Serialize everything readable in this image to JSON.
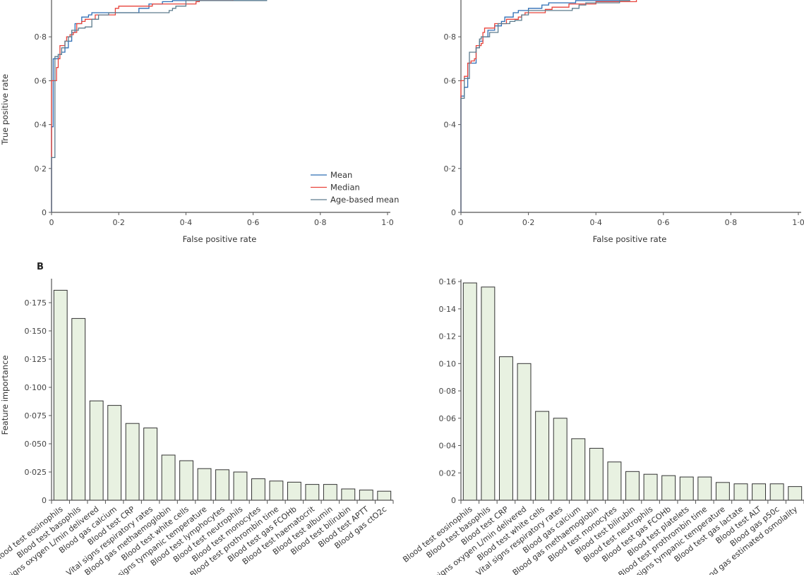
{
  "colors": {
    "mean": "#2e6db4",
    "median": "#e8433b",
    "age_based_mean": "#5d7c8e",
    "bar_fill": "#e8f1e1",
    "bar_stroke": "#333333",
    "axis": "#555555"
  },
  "panel_label_b": "B",
  "chart_data": [
    {
      "type": "line",
      "xlabel": "False positive rate",
      "ylabel": "True positive rate",
      "xlim": [
        0,
        1
      ],
      "ylim": [
        0,
        1
      ],
      "xticks": [
        0,
        0.2,
        0.4,
        0.6,
        0.8,
        1.0
      ],
      "xtick_labels": [
        "0",
        "0·2",
        "0·4",
        "0·6",
        "0·8",
        "1·0"
      ],
      "yticks": [
        0,
        0.2,
        0.4,
        0.6,
        0.8
      ],
      "ytick_labels": [
        "0",
        "0·2",
        "0·4",
        "0·6",
        "0·8"
      ],
      "legend": "bottom-right",
      "grid": false,
      "series": [
        {
          "name": "Mean",
          "color_key": "mean",
          "points": [
            [
              0,
              0
            ],
            [
              0,
              0.25
            ],
            [
              0,
              0.39
            ],
            [
              0.005,
              0.39
            ],
            [
              0.005,
              0.7
            ],
            [
              0.02,
              0.7
            ],
            [
              0.02,
              0.72
            ],
            [
              0.03,
              0.72
            ],
            [
              0.03,
              0.73
            ],
            [
              0.04,
              0.73
            ],
            [
              0.04,
              0.75
            ],
            [
              0.05,
              0.75
            ],
            [
              0.05,
              0.78
            ],
            [
              0.06,
              0.78
            ],
            [
              0.06,
              0.82
            ],
            [
              0.07,
              0.82
            ],
            [
              0.07,
              0.86
            ],
            [
              0.09,
              0.86
            ],
            [
              0.09,
              0.89
            ],
            [
              0.11,
              0.89
            ],
            [
              0.11,
              0.9
            ],
            [
              0.12,
              0.9
            ],
            [
              0.12,
              0.91
            ],
            [
              0.26,
              0.91
            ],
            [
              0.26,
              0.93
            ],
            [
              0.29,
              0.93
            ],
            [
              0.29,
              0.95
            ],
            [
              0.33,
              0.95
            ],
            [
              0.33,
              0.96
            ],
            [
              0.36,
              0.96
            ],
            [
              0.36,
              0.965
            ],
            [
              0.64,
              0.965
            ],
            [
              0.64,
              1.0
            ],
            [
              1,
              1
            ]
          ]
        },
        {
          "name": "Median",
          "color_key": "median",
          "points": [
            [
              0,
              0
            ],
            [
              0,
              0.6
            ],
            [
              0.015,
              0.6
            ],
            [
              0.015,
              0.66
            ],
            [
              0.02,
              0.66
            ],
            [
              0.02,
              0.7
            ],
            [
              0.025,
              0.7
            ],
            [
              0.025,
              0.76
            ],
            [
              0.04,
              0.76
            ],
            [
              0.04,
              0.78
            ],
            [
              0.045,
              0.78
            ],
            [
              0.045,
              0.8
            ],
            [
              0.055,
              0.8
            ],
            [
              0.055,
              0.81
            ],
            [
              0.065,
              0.81
            ],
            [
              0.065,
              0.82
            ],
            [
              0.075,
              0.82
            ],
            [
              0.075,
              0.86
            ],
            [
              0.09,
              0.86
            ],
            [
              0.09,
              0.87
            ],
            [
              0.1,
              0.87
            ],
            [
              0.1,
              0.88
            ],
            [
              0.13,
              0.88
            ],
            [
              0.13,
              0.9
            ],
            [
              0.19,
              0.9
            ],
            [
              0.19,
              0.93
            ],
            [
              0.2,
              0.93
            ],
            [
              0.2,
              0.94
            ],
            [
              0.3,
              0.94
            ],
            [
              0.3,
              0.95
            ],
            [
              0.43,
              0.95
            ],
            [
              0.43,
              0.96
            ],
            [
              0.44,
              0.96
            ],
            [
              0.44,
              0.965
            ],
            [
              0.54,
              0.965
            ],
            [
              0.54,
              1.0
            ],
            [
              1,
              1
            ]
          ]
        },
        {
          "name": "Age-based mean",
          "color_key": "age_based_mean",
          "points": [
            [
              0,
              0
            ],
            [
              0,
              0.25
            ],
            [
              0.01,
              0.25
            ],
            [
              0.01,
              0.71
            ],
            [
              0.02,
              0.71
            ],
            [
              0.02,
              0.72
            ],
            [
              0.03,
              0.72
            ],
            [
              0.03,
              0.75
            ],
            [
              0.04,
              0.75
            ],
            [
              0.04,
              0.78
            ],
            [
              0.05,
              0.78
            ],
            [
              0.05,
              0.8
            ],
            [
              0.06,
              0.8
            ],
            [
              0.06,
              0.83
            ],
            [
              0.08,
              0.83
            ],
            [
              0.08,
              0.84
            ],
            [
              0.1,
              0.84
            ],
            [
              0.1,
              0.845
            ],
            [
              0.12,
              0.845
            ],
            [
              0.12,
              0.88
            ],
            [
              0.14,
              0.88
            ],
            [
              0.14,
              0.9
            ],
            [
              0.17,
              0.9
            ],
            [
              0.17,
              0.91
            ],
            [
              0.35,
              0.91
            ],
            [
              0.35,
              0.92
            ],
            [
              0.36,
              0.92
            ],
            [
              0.36,
              0.93
            ],
            [
              0.37,
              0.93
            ],
            [
              0.37,
              0.94
            ],
            [
              0.4,
              0.94
            ],
            [
              0.4,
              0.965
            ],
            [
              0.64,
              0.965
            ],
            [
              0.64,
              1.0
            ],
            [
              1,
              1
            ]
          ]
        }
      ]
    },
    {
      "type": "line",
      "xlabel": "False positive rate",
      "ylabel": "",
      "xlim": [
        0,
        1
      ],
      "ylim": [
        0,
        1
      ],
      "xticks": [
        0,
        0.2,
        0.4,
        0.6,
        0.8,
        1.0
      ],
      "xtick_labels": [
        "0",
        "0·2",
        "0·4",
        "0·6",
        "0·8",
        "1·0"
      ],
      "yticks": [
        0,
        0.2,
        0.4,
        0.6,
        0.8
      ],
      "ytick_labels": [
        "0",
        "0·2",
        "0·4",
        "0·6",
        "0·8"
      ],
      "grid": false,
      "series": [
        {
          "color_key": "mean",
          "points": [
            [
              0,
              0
            ],
            [
              0,
              0.53
            ],
            [
              0.01,
              0.53
            ],
            [
              0.01,
              0.57
            ],
            [
              0.02,
              0.57
            ],
            [
              0.02,
              0.68
            ],
            [
              0.045,
              0.68
            ],
            [
              0.045,
              0.75
            ],
            [
              0.055,
              0.75
            ],
            [
              0.055,
              0.78
            ],
            [
              0.065,
              0.78
            ],
            [
              0.065,
              0.8
            ],
            [
              0.08,
              0.8
            ],
            [
              0.08,
              0.83
            ],
            [
              0.1,
              0.83
            ],
            [
              0.1,
              0.85
            ],
            [
              0.12,
              0.85
            ],
            [
              0.12,
              0.87
            ],
            [
              0.13,
              0.87
            ],
            [
              0.13,
              0.89
            ],
            [
              0.155,
              0.89
            ],
            [
              0.155,
              0.91
            ],
            [
              0.17,
              0.91
            ],
            [
              0.17,
              0.92
            ],
            [
              0.2,
              0.92
            ],
            [
              0.2,
              0.93
            ],
            [
              0.24,
              0.93
            ],
            [
              0.24,
              0.945
            ],
            [
              0.26,
              0.945
            ],
            [
              0.26,
              0.955
            ],
            [
              0.34,
              0.955
            ],
            [
              0.34,
              0.965
            ],
            [
              0.5,
              0.965
            ],
            [
              0.5,
              1.0
            ],
            [
              1,
              1
            ]
          ]
        },
        {
          "color_key": "median",
          "points": [
            [
              0,
              0
            ],
            [
              0,
              0.6
            ],
            [
              0.01,
              0.6
            ],
            [
              0.01,
              0.62
            ],
            [
              0.02,
              0.62
            ],
            [
              0.02,
              0.68
            ],
            [
              0.03,
              0.68
            ],
            [
              0.03,
              0.69
            ],
            [
              0.04,
              0.69
            ],
            [
              0.04,
              0.7
            ],
            [
              0.045,
              0.7
            ],
            [
              0.045,
              0.76
            ],
            [
              0.06,
              0.76
            ],
            [
              0.06,
              0.77
            ],
            [
              0.065,
              0.77
            ],
            [
              0.065,
              0.82
            ],
            [
              0.07,
              0.82
            ],
            [
              0.07,
              0.84
            ],
            [
              0.1,
              0.84
            ],
            [
              0.1,
              0.86
            ],
            [
              0.135,
              0.86
            ],
            [
              0.135,
              0.88
            ],
            [
              0.17,
              0.88
            ],
            [
              0.17,
              0.89
            ],
            [
              0.18,
              0.89
            ],
            [
              0.18,
              0.9
            ],
            [
              0.19,
              0.9
            ],
            [
              0.19,
              0.91
            ],
            [
              0.25,
              0.91
            ],
            [
              0.25,
              0.925
            ],
            [
              0.27,
              0.925
            ],
            [
              0.27,
              0.935
            ],
            [
              0.32,
              0.935
            ],
            [
              0.32,
              0.95
            ],
            [
              0.4,
              0.95
            ],
            [
              0.4,
              0.96
            ],
            [
              0.52,
              0.96
            ],
            [
              0.52,
              1.0
            ],
            [
              1,
              1
            ]
          ]
        },
        {
          "color_key": "age_based_mean",
          "points": [
            [
              0,
              0
            ],
            [
              0,
              0.52
            ],
            [
              0.01,
              0.52
            ],
            [
              0.01,
              0.61
            ],
            [
              0.025,
              0.61
            ],
            [
              0.025,
              0.73
            ],
            [
              0.045,
              0.73
            ],
            [
              0.045,
              0.75
            ],
            [
              0.055,
              0.75
            ],
            [
              0.055,
              0.79
            ],
            [
              0.06,
              0.79
            ],
            [
              0.06,
              0.8
            ],
            [
              0.085,
              0.8
            ],
            [
              0.085,
              0.82
            ],
            [
              0.11,
              0.82
            ],
            [
              0.11,
              0.86
            ],
            [
              0.145,
              0.86
            ],
            [
              0.145,
              0.87
            ],
            [
              0.16,
              0.87
            ],
            [
              0.16,
              0.875
            ],
            [
              0.18,
              0.875
            ],
            [
              0.18,
              0.9
            ],
            [
              0.2,
              0.9
            ],
            [
              0.2,
              0.92
            ],
            [
              0.33,
              0.92
            ],
            [
              0.33,
              0.93
            ],
            [
              0.35,
              0.93
            ],
            [
              0.35,
              0.945
            ],
            [
              0.37,
              0.945
            ],
            [
              0.37,
              0.955
            ],
            [
              0.47,
              0.955
            ],
            [
              0.47,
              0.965
            ],
            [
              0.5,
              0.965
            ],
            [
              0.5,
              1.0
            ],
            [
              1,
              1
            ]
          ]
        }
      ]
    },
    {
      "type": "bar",
      "ylabel": "Feature importance",
      "ylim": [
        0,
        0.19
      ],
      "yticks": [
        0,
        0.025,
        0.05,
        0.075,
        0.1,
        0.125,
        0.15,
        0.175
      ],
      "ytick_labels": [
        "0",
        "0·025",
        "0·050",
        "0·075",
        "0·100",
        "0·125",
        "0·150",
        "0·175"
      ],
      "categories": [
        "Blood test eosinophils",
        "Blood test basophils",
        "Vital signs oxygen L/min delivered",
        "Blood gas calcium",
        "Blood test CRP",
        "Vital signs respiratory rates",
        "Blood gas methaemoglobin",
        "Blood test white cells",
        "Vital signs tympanic temperature",
        "Blood test lymphocytes",
        "Blood test neutrophils",
        "Blood test monocytes",
        "Blood test prothrombin time",
        "Blood test gas FCOHb",
        "Blood test haematocrit",
        "Blood test albumin",
        "Blood test bilirubin",
        "Blood test APTT",
        "Blood gas ctO2c"
      ],
      "values": [
        0.186,
        0.161,
        0.088,
        0.084,
        0.068,
        0.064,
        0.04,
        0.035,
        0.028,
        0.027,
        0.025,
        0.019,
        0.017,
        0.016,
        0.014,
        0.014,
        0.01,
        0.009,
        0.008
      ]
    },
    {
      "type": "bar",
      "ylabel": "",
      "ylim": [
        0,
        0.16
      ],
      "yticks": [
        0,
        0.02,
        0.04,
        0.06,
        0.08,
        0.1,
        0.12,
        0.14,
        0.16
      ],
      "ytick_labels": [
        "0",
        "0·02",
        "0·04",
        "0·06",
        "0·08",
        "0·10",
        "0·12",
        "0·14",
        "0·16"
      ],
      "categories": [
        "Blood test eosinophils",
        "Blood test basophils",
        "Blood test CRP",
        "Vital signs oxygen L/min delivered",
        "Blood test white cells",
        "Vital signs respiratory rates",
        "Blood gas calcium",
        "Blood gas methaemoglobin",
        "Blood test monocytes",
        "Blood test bilirubin",
        "Blood test neutrophils",
        "Blood test gas FCOHb",
        "Blood test platelets",
        "Blood test prothrombin time",
        "Vital signs tympanic temperature",
        "Blood test gas lactate",
        "Blood test ALT",
        "Blood gas p50c",
        "Blood gas estimated osmolality"
      ],
      "values": [
        0.159,
        0.156,
        0.105,
        0.1,
        0.065,
        0.06,
        0.045,
        0.038,
        0.028,
        0.021,
        0.019,
        0.018,
        0.017,
        0.017,
        0.013,
        0.012,
        0.012,
        0.012,
        0.01
      ]
    }
  ]
}
